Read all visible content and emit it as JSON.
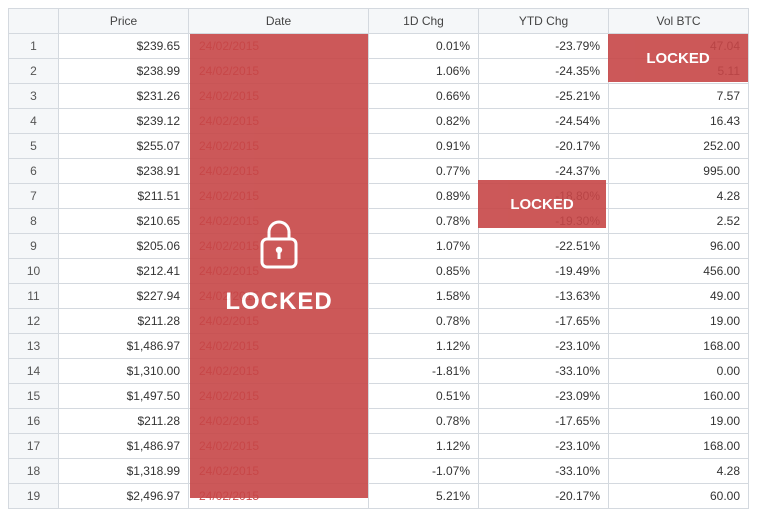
{
  "locked_label": "LOCKED",
  "overlay_color": "#c74647",
  "columns": [
    "Price",
    "Date",
    "1D Chg",
    "YTD Chg",
    "Vol BTC"
  ],
  "rows": [
    {
      "n": "1",
      "price": "$239.65",
      "date": "24/02/2015",
      "chg1d": "0.01%",
      "ytd": "-23.79%",
      "vol": "47.04"
    },
    {
      "n": "2",
      "price": "$238.99",
      "date": "24/02/2015",
      "chg1d": "1.06%",
      "ytd": "-24.35%",
      "vol": "5.11"
    },
    {
      "n": "3",
      "price": "$231.26",
      "date": "24/02/2015",
      "chg1d": "0.66%",
      "ytd": "-25.21%",
      "vol": "7.57"
    },
    {
      "n": "4",
      "price": "$239.12",
      "date": "24/02/2015",
      "chg1d": "0.82%",
      "ytd": "-24.54%",
      "vol": "16.43"
    },
    {
      "n": "5",
      "price": "$255.07",
      "date": "24/02/2015",
      "chg1d": "0.91%",
      "ytd": "-20.17%",
      "vol": "252.00"
    },
    {
      "n": "6",
      "price": "$238.91",
      "date": "24/02/2015",
      "chg1d": "0.77%",
      "ytd": "-24.37%",
      "vol": "995.00"
    },
    {
      "n": "7",
      "price": "$211.51",
      "date": "24/02/2015",
      "chg1d": "0.89%",
      "ytd": "-18.80%",
      "vol": "4.28"
    },
    {
      "n": "8",
      "price": "$210.65",
      "date": "24/02/2015",
      "chg1d": "0.78%",
      "ytd": "-19.30%",
      "vol": "2.52"
    },
    {
      "n": "9",
      "price": "$205.06",
      "date": "24/02/2015",
      "chg1d": "1.07%",
      "ytd": "-22.51%",
      "vol": "96.00"
    },
    {
      "n": "10",
      "price": "$212.41",
      "date": "24/02/2015",
      "chg1d": "0.85%",
      "ytd": "-19.49%",
      "vol": "456.00"
    },
    {
      "n": "11",
      "price": "$227.94",
      "date": "24/02/2015",
      "chg1d": "1.58%",
      "ytd": "-13.63%",
      "vol": "49.00"
    },
    {
      "n": "12",
      "price": "$211.28",
      "date": "24/02/2015",
      "chg1d": "0.78%",
      "ytd": "-17.65%",
      "vol": "19.00"
    },
    {
      "n": "13",
      "price": "$1,486.97",
      "date": "24/02/2015",
      "chg1d": "1.12%",
      "ytd": "-23.10%",
      "vol": "168.00"
    },
    {
      "n": "14",
      "price": "$1,310.00",
      "date": "24/02/2015",
      "chg1d": "-1.81%",
      "ytd": "-33.10%",
      "vol": "0.00"
    },
    {
      "n": "15",
      "price": "$1,497.50",
      "date": "24/02/2015",
      "chg1d": "0.51%",
      "ytd": "-23.09%",
      "vol": "160.00"
    },
    {
      "n": "16",
      "price": "$211.28",
      "date": "24/02/2015",
      "chg1d": "0.78%",
      "ytd": "-17.65%",
      "vol": "19.00"
    },
    {
      "n": "17",
      "price": "$1,486.97",
      "date": "24/02/2015",
      "chg1d": "1.12%",
      "ytd": "-23.10%",
      "vol": "168.00"
    },
    {
      "n": "18",
      "price": "$1,318.99",
      "date": "24/02/2015",
      "chg1d": "-1.07%",
      "ytd": "-33.10%",
      "vol": "4.28"
    },
    {
      "n": "19",
      "price": "$2,496.97",
      "date": "24/02/2015",
      "chg1d": "5.21%",
      "ytd": "-20.17%",
      "vol": "60.00"
    }
  ]
}
